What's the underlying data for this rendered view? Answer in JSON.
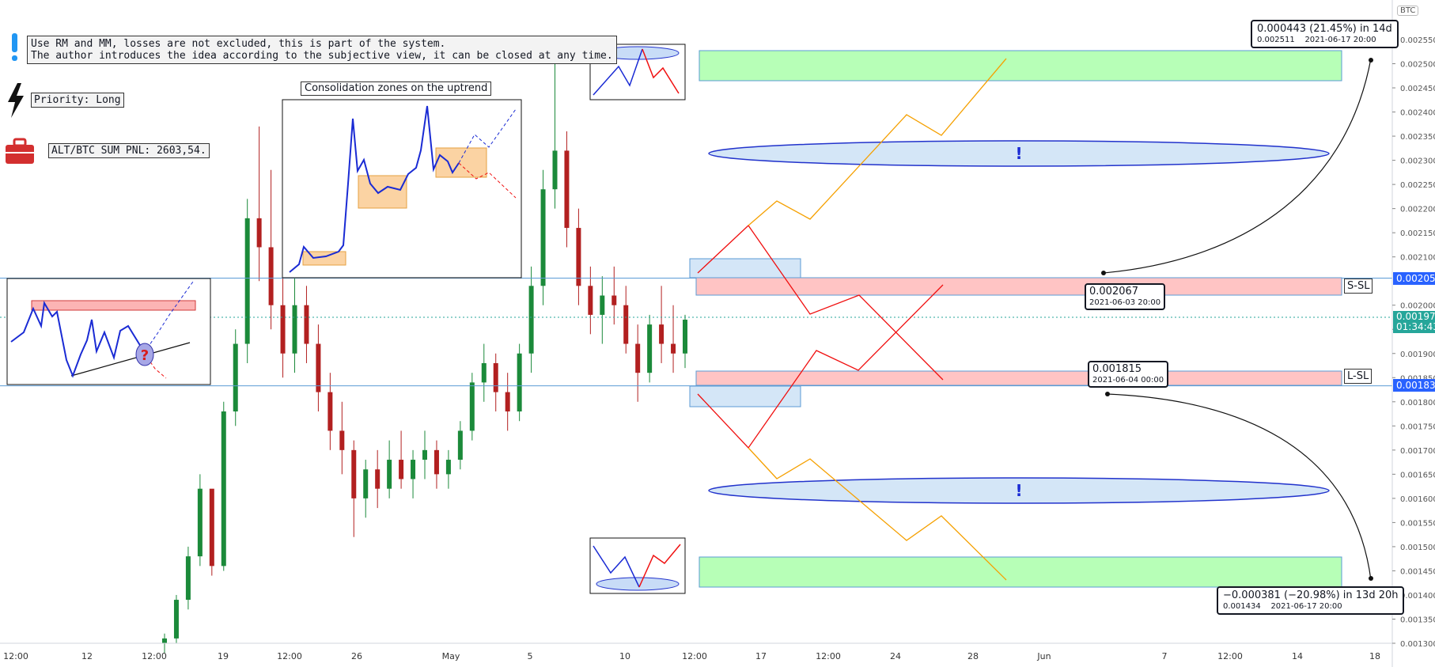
{
  "chart_data": {
    "type": "candlestick",
    "title": "",
    "xlabel": "",
    "ylabel": "",
    "currency_label": "BTC",
    "ylim": [
      0.0013,
      0.00261
    ],
    "y_ticks": [
      "0.002550",
      "0.002500",
      "0.002450",
      "0.002400",
      "0.002350",
      "0.002300",
      "0.002250",
      "0.002200",
      "0.002150",
      "0.002100",
      "0.002000",
      "0.001950",
      "0.001900",
      "0.001850",
      "0.001800",
      "0.001750",
      "0.001700",
      "0.001650",
      "0.001600",
      "0.001550",
      "0.001500",
      "0.001450",
      "0.001400",
      "0.001350",
      "0.001300"
    ],
    "x_ticks": [
      "12:00",
      "12",
      "12:00",
      "19",
      "12:00",
      "26",
      "May",
      "5",
      "10",
      "12:00",
      "17",
      "12:00",
      "24",
      "28",
      "Jun",
      "7",
      "12:00",
      "14",
      "18"
    ],
    "current_price": {
      "value": "0.001975",
      "countdown": "01:34:43",
      "y": 0.001975
    },
    "levels": {
      "s_sl": {
        "value": "0.002056",
        "label": "S-SL",
        "y": 0.002056
      },
      "l_sl": {
        "value": "0.001833",
        "label": "L-SL",
        "y": 0.001833
      }
    },
    "candles_ohlc": [
      [
        0.0013,
        0.00132,
        0.00128,
        0.00131
      ],
      [
        0.00131,
        0.0014,
        0.0013,
        0.00139
      ],
      [
        0.00139,
        0.0015,
        0.00137,
        0.00148
      ],
      [
        0.00148,
        0.00165,
        0.00146,
        0.00162
      ],
      [
        0.00162,
        0.00158,
        0.00144,
        0.00146
      ],
      [
        0.00146,
        0.0018,
        0.00145,
        0.00178
      ],
      [
        0.00178,
        0.00195,
        0.00175,
        0.00192
      ],
      [
        0.00192,
        0.00222,
        0.00188,
        0.00218
      ],
      [
        0.00218,
        0.00237,
        0.00205,
        0.00212
      ],
      [
        0.00212,
        0.00228,
        0.00195,
        0.002
      ],
      [
        0.002,
        0.0021,
        0.00185,
        0.0019
      ],
      [
        0.0019,
        0.00206,
        0.00186,
        0.002
      ],
      [
        0.002,
        0.00204,
        0.00188,
        0.00192
      ],
      [
        0.00192,
        0.00196,
        0.00178,
        0.00182
      ],
      [
        0.00182,
        0.00186,
        0.0017,
        0.00174
      ],
      [
        0.00174,
        0.0018,
        0.00165,
        0.0017
      ],
      [
        0.0017,
        0.00172,
        0.00152,
        0.0016
      ],
      [
        0.0016,
        0.00168,
        0.00156,
        0.00166
      ],
      [
        0.00166,
        0.0017,
        0.00158,
        0.00162
      ],
      [
        0.00162,
        0.00172,
        0.0016,
        0.00168
      ],
      [
        0.00168,
        0.00174,
        0.00162,
        0.00164
      ],
      [
        0.00164,
        0.0017,
        0.0016,
        0.00168
      ],
      [
        0.00168,
        0.00174,
        0.00164,
        0.0017
      ],
      [
        0.0017,
        0.00172,
        0.00162,
        0.00165
      ],
      [
        0.00165,
        0.0017,
        0.00162,
        0.00168
      ],
      [
        0.00168,
        0.00176,
        0.00166,
        0.00174
      ],
      [
        0.00174,
        0.00186,
        0.00172,
        0.00184
      ],
      [
        0.00184,
        0.00192,
        0.0018,
        0.00188
      ],
      [
        0.00188,
        0.0019,
        0.00178,
        0.00182
      ],
      [
        0.00182,
        0.00186,
        0.00174,
        0.00178
      ],
      [
        0.00178,
        0.00192,
        0.00176,
        0.0019
      ],
      [
        0.0019,
        0.00208,
        0.00186,
        0.00204
      ],
      [
        0.00204,
        0.00228,
        0.002,
        0.00224
      ],
      [
        0.00224,
        0.0025,
        0.0022,
        0.00232
      ],
      [
        0.00232,
        0.00236,
        0.00212,
        0.00216
      ],
      [
        0.00216,
        0.0022,
        0.002,
        0.00204
      ],
      [
        0.00204,
        0.00208,
        0.00194,
        0.00198
      ],
      [
        0.00198,
        0.00206,
        0.00192,
        0.00202
      ],
      [
        0.00202,
        0.00208,
        0.00196,
        0.002
      ],
      [
        0.002,
        0.00204,
        0.0019,
        0.00192
      ],
      [
        0.00192,
        0.00196,
        0.0018,
        0.00186
      ],
      [
        0.00186,
        0.00198,
        0.00184,
        0.00196
      ],
      [
        0.00196,
        0.00204,
        0.00188,
        0.00192
      ],
      [
        0.00192,
        0.002,
        0.00186,
        0.0019
      ],
      [
        0.0019,
        0.00198,
        0.00187,
        0.00197
      ]
    ]
  },
  "notes": {
    "line1": "Use RM and MM, losses are not excluded, this is part of the system.",
    "line2": "The author introduces the idea according to the subjective view, it can be closed at any time.",
    "priority": "Priority: Long",
    "pnl": "ALT/BTC SUM PNL: 2603,54."
  },
  "inset": {
    "title": "Consolidation zones on the uptrend"
  },
  "callouts": {
    "top_main": "0.000443 (21.45%) in 14d",
    "top_price": "0.002511",
    "top_date": "2021-06-17  20:00",
    "start_high_price": "0.002067",
    "start_high_date": "2021-06-03 20:00",
    "start_low_price": "0.001815",
    "start_low_date": "2021-06-04 00:00",
    "bottom_main": "−0.000381 (−20.98%) in 13d 20h",
    "bottom_price": "0.001434",
    "bottom_date": "2021-06-17  20:00"
  },
  "markers": {
    "exclaim": "!",
    "question": "?"
  },
  "colors": {
    "up": "#26a69a",
    "down": "#ef5350",
    "candle_up": "#1b8a3a",
    "candle_down": "#b22020",
    "green_zone": "#b7ffb7",
    "red_zone": "#ffc4c4",
    "blue_zone": "#d4e6f7",
    "level_line": "#5b9bd5",
    "price_tag": "#26a69a",
    "sl_tag": "#2962ff"
  }
}
